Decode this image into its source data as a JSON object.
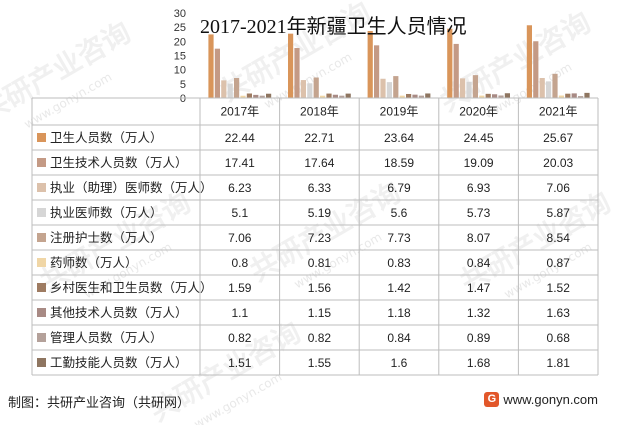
{
  "title": "2017-2021年新疆卫生人员情况",
  "footer": {
    "left": "制图：共研产业咨询（共研网）",
    "right": "www.gonyn.com",
    "logo": "G"
  },
  "watermark": {
    "text": "共研产业咨询",
    "url": "www.gonyn.com"
  },
  "colors": {
    "series": [
      "#d9955a",
      "#c49a85",
      "#dcc1ab",
      "#d6d6d6",
      "#c4a48f",
      "#f0d6a6",
      "#9e7b61",
      "#a88a84",
      "#b4a19a",
      "#8e7560"
    ],
    "grid": "#bdbdbd",
    "text": "#222222"
  },
  "chart_data": {
    "type": "bar",
    "title": "2017-2021年新疆卫生人员情况",
    "categories": [
      "2017年",
      "2018年",
      "2019年",
      "2020年",
      "2021年"
    ],
    "y_ticks": [
      "30",
      "25",
      "20",
      "15",
      "10",
      "5",
      "0"
    ],
    "ylim": [
      0,
      30
    ],
    "grid": false,
    "legend": "table",
    "series": [
      {
        "name": "卫生人员数（万人）",
        "values": [
          22.44,
          22.71,
          23.64,
          24.45,
          25.67
        ],
        "labels": [
          "22.44",
          "22.71",
          "23.64",
          "24.45",
          "25.67"
        ]
      },
      {
        "name": "卫生技术人员数（万人）",
        "values": [
          17.41,
          17.64,
          18.59,
          19.09,
          20.03
        ],
        "labels": [
          "17.41",
          "17.64",
          "18.59",
          "19.09",
          "20.03"
        ]
      },
      {
        "name": "执业（助理）医师数（万人）",
        "values": [
          6.23,
          6.33,
          6.79,
          6.93,
          7.06
        ],
        "labels": [
          "6.23",
          "6.33",
          "6.79",
          "6.93",
          "7.06"
        ]
      },
      {
        "name": "执业医师数（万人）",
        "values": [
          5.1,
          5.19,
          5.6,
          5.73,
          5.87
        ],
        "labels": [
          "5.1",
          "5.19",
          "5.6",
          "5.73",
          "5.87"
        ]
      },
      {
        "name": "注册护士数（万人）",
        "values": [
          7.06,
          7.23,
          7.73,
          8.07,
          8.54
        ],
        "labels": [
          "7.06",
          "7.23",
          "7.73",
          "8.07",
          "8.54"
        ]
      },
      {
        "name": "药师数（万人）",
        "values": [
          0.8,
          0.81,
          0.83,
          0.84,
          0.87
        ],
        "labels": [
          "0.8",
          "0.81",
          "0.83",
          "0.84",
          "0.87"
        ]
      },
      {
        "name": "乡村医生和卫生员数（万人）",
        "values": [
          1.59,
          1.56,
          1.42,
          1.47,
          1.52
        ],
        "labels": [
          "1.59",
          "1.56",
          "1.42",
          "1.47",
          "1.52"
        ]
      },
      {
        "name": "其他技术人员数（万人）",
        "values": [
          1.1,
          1.15,
          1.18,
          1.32,
          1.63
        ],
        "labels": [
          "1.1",
          "1.15",
          "1.18",
          "1.32",
          "1.63"
        ]
      },
      {
        "name": "管理人员数（万人）",
        "values": [
          0.82,
          0.82,
          0.84,
          0.89,
          0.68
        ],
        "labels": [
          "0.82",
          "0.82",
          "0.84",
          "0.89",
          "0.68"
        ]
      },
      {
        "name": "工勤技能人员数（万人）",
        "values": [
          1.51,
          1.55,
          1.6,
          1.68,
          1.81
        ],
        "labels": [
          "1.51",
          "1.55",
          "1.6",
          "1.68",
          "1.81"
        ]
      }
    ]
  }
}
